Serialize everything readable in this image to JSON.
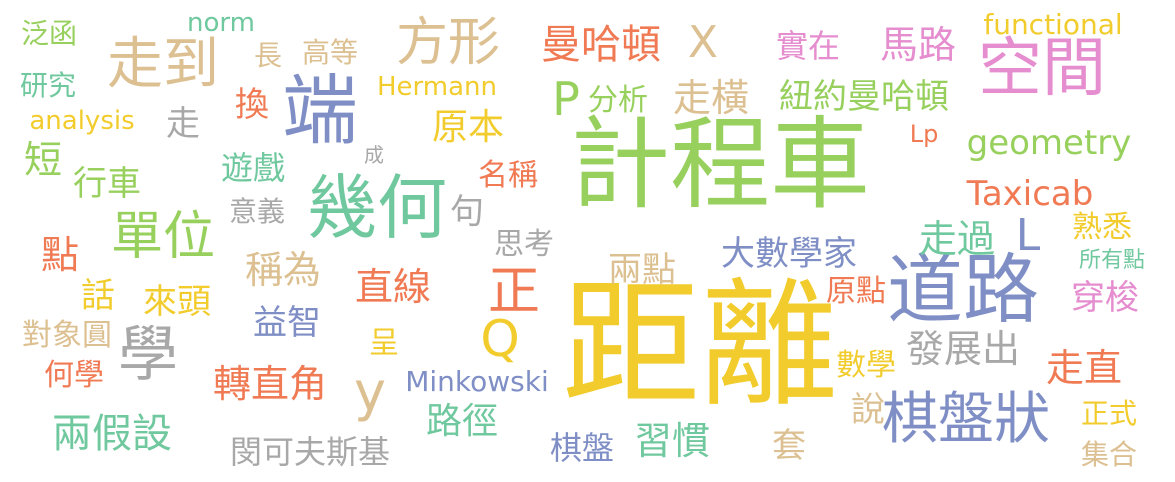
{
  "word_cloud": {
    "palette": {
      "yellow": "#f2cc2c",
      "green": "#98d05e",
      "teal": "#6fc89e",
      "blue": "#7f8fc6",
      "pink": "#e58dce",
      "orange": "#f07a53",
      "tan": "#dcc091",
      "gray": "#a8a8a8"
    },
    "words": [
      {
        "text": "距離",
        "color": "yellow"
      },
      {
        "text": "計程車",
        "color": "green"
      },
      {
        "text": "幾何",
        "color": "teal"
      },
      {
        "text": "端",
        "color": "blue"
      },
      {
        "text": "道路",
        "color": "blue"
      },
      {
        "text": "空間",
        "color": "pink"
      },
      {
        "text": "棋盤狀",
        "color": "blue"
      },
      {
        "text": "走到",
        "color": "tan"
      },
      {
        "text": "方形",
        "color": "tan"
      },
      {
        "text": "單位",
        "color": "green"
      },
      {
        "text": "學",
        "color": "gray"
      },
      {
        "text": "正",
        "color": "orange"
      },
      {
        "text": "曼哈頓",
        "color": "orange"
      },
      {
        "text": "X",
        "color": "tan"
      },
      {
        "text": "P",
        "color": "green"
      },
      {
        "text": "分析",
        "color": "green"
      },
      {
        "text": "走橫",
        "color": "tan"
      },
      {
        "text": "紐約曼哈頓",
        "color": "green"
      },
      {
        "text": "實在",
        "color": "pink"
      },
      {
        "text": "馬路",
        "color": "pink"
      },
      {
        "text": "functional",
        "color": "yellow"
      },
      {
        "text": "norm",
        "color": "teal"
      },
      {
        "text": "泛函",
        "color": "green"
      },
      {
        "text": "研究",
        "color": "teal"
      },
      {
        "text": "analysis",
        "color": "yellow"
      },
      {
        "text": "走",
        "color": "gray"
      },
      {
        "text": "短",
        "color": "green"
      },
      {
        "text": "行車",
        "color": "green"
      },
      {
        "text": "點",
        "color": "orange"
      },
      {
        "text": "話",
        "color": "yellow"
      },
      {
        "text": "來頭",
        "color": "yellow"
      },
      {
        "text": "對象圓",
        "color": "tan"
      },
      {
        "text": "何學",
        "color": "orange"
      },
      {
        "text": "兩假設",
        "color": "teal"
      },
      {
        "text": "長",
        "color": "tan"
      },
      {
        "text": "高等",
        "color": "tan"
      },
      {
        "text": "換",
        "color": "orange"
      },
      {
        "text": "遊戲",
        "color": "teal"
      },
      {
        "text": "意義",
        "color": "gray"
      },
      {
        "text": "成",
        "color": "gray"
      },
      {
        "text": "Hermann",
        "color": "yellow"
      },
      {
        "text": "原本",
        "color": "yellow"
      },
      {
        "text": "名稱",
        "color": "orange"
      },
      {
        "text": "句",
        "color": "gray"
      },
      {
        "text": "稱為",
        "color": "tan"
      },
      {
        "text": "思考",
        "color": "gray"
      },
      {
        "text": "兩點",
        "color": "tan"
      },
      {
        "text": "大數學家",
        "color": "blue"
      },
      {
        "text": "直線",
        "color": "orange"
      },
      {
        "text": "益智",
        "color": "blue"
      },
      {
        "text": "呈",
        "color": "yellow"
      },
      {
        "text": "Q",
        "color": "yellow"
      },
      {
        "text": "y",
        "color": "tan"
      },
      {
        "text": "Minkowski",
        "color": "blue"
      },
      {
        "text": "轉直角",
        "color": "orange"
      },
      {
        "text": "路徑",
        "color": "teal"
      },
      {
        "text": "閔可夫斯基",
        "color": "gray"
      },
      {
        "text": "棋盤",
        "color": "blue"
      },
      {
        "text": "習慣",
        "color": "teal"
      },
      {
        "text": "套",
        "color": "tan"
      },
      {
        "text": "Lp",
        "color": "orange"
      },
      {
        "text": "geometry",
        "color": "green"
      },
      {
        "text": "Taxicab",
        "color": "orange"
      },
      {
        "text": "走過",
        "color": "teal"
      },
      {
        "text": "L",
        "color": "blue"
      },
      {
        "text": "熟悉",
        "color": "yellow"
      },
      {
        "text": "所有點",
        "color": "teal"
      },
      {
        "text": "穿梭",
        "color": "pink"
      },
      {
        "text": "原點",
        "color": "orange"
      },
      {
        "text": "發展出",
        "color": "gray"
      },
      {
        "text": "數學",
        "color": "yellow"
      },
      {
        "text": "走直",
        "color": "orange"
      },
      {
        "text": "說",
        "color": "tan"
      },
      {
        "text": "正式",
        "color": "yellow"
      },
      {
        "text": "集合",
        "color": "tan"
      }
    ]
  }
}
